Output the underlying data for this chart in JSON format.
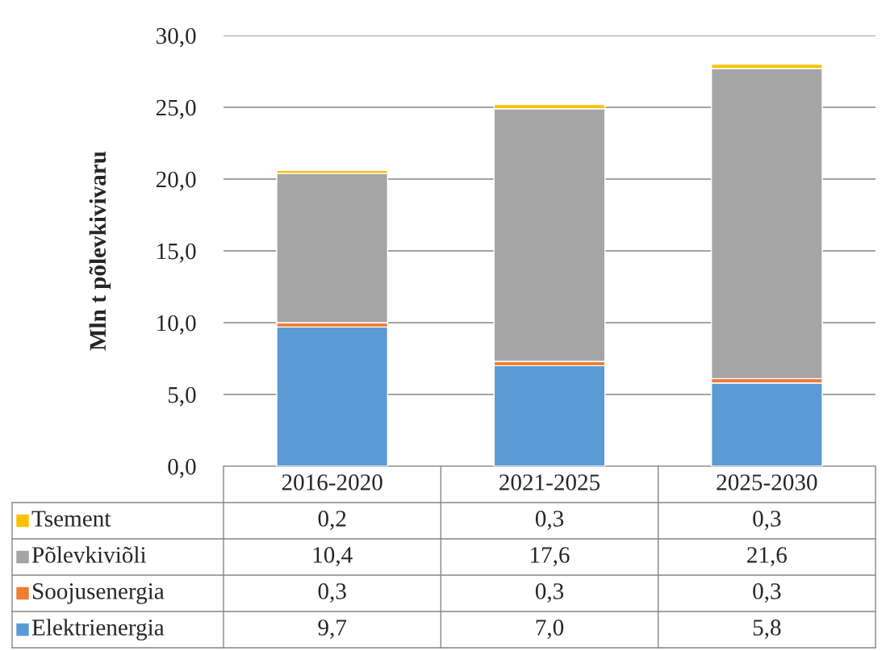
{
  "chart_data": {
    "type": "bar",
    "stacked": true,
    "ylabel": "Mln t põlevkivivaru",
    "categories": [
      "2016-2020",
      "2021-2025",
      "2025-2030"
    ],
    "series": [
      {
        "name": "Elektrienergia",
        "color": "#5b9bd5",
        "values": [
          9.7,
          7.0,
          5.8
        ],
        "value_labels": [
          "9,7",
          "7,0",
          "5,8"
        ]
      },
      {
        "name": "Soojusenergia",
        "color": "#ed7d31",
        "values": [
          0.3,
          0.3,
          0.3
        ],
        "value_labels": [
          "0,3",
          "0,3",
          "0,3"
        ]
      },
      {
        "name": "Põlevkiviõli",
        "color": "#a5a5a5",
        "values": [
          10.4,
          17.6,
          21.6
        ],
        "value_labels": [
          "10,4",
          "17,6",
          "21,6"
        ]
      },
      {
        "name": "Tsement",
        "color": "#ffc000",
        "values": [
          0.2,
          0.3,
          0.3
        ],
        "value_labels": [
          "0,2",
          "0,3",
          "0,3"
        ]
      }
    ],
    "ylim": [
      0,
      30
    ],
    "yticks": [
      {
        "value": 0,
        "label": "0,0"
      },
      {
        "value": 5,
        "label": "5,0"
      },
      {
        "value": 10,
        "label": "10,0"
      },
      {
        "value": 15,
        "label": "15,0"
      },
      {
        "value": 20,
        "label": "20,0"
      },
      {
        "value": 25,
        "label": "25,0"
      },
      {
        "value": 30,
        "label": "30,0"
      }
    ],
    "grid": "y",
    "legend": "bottom"
  }
}
